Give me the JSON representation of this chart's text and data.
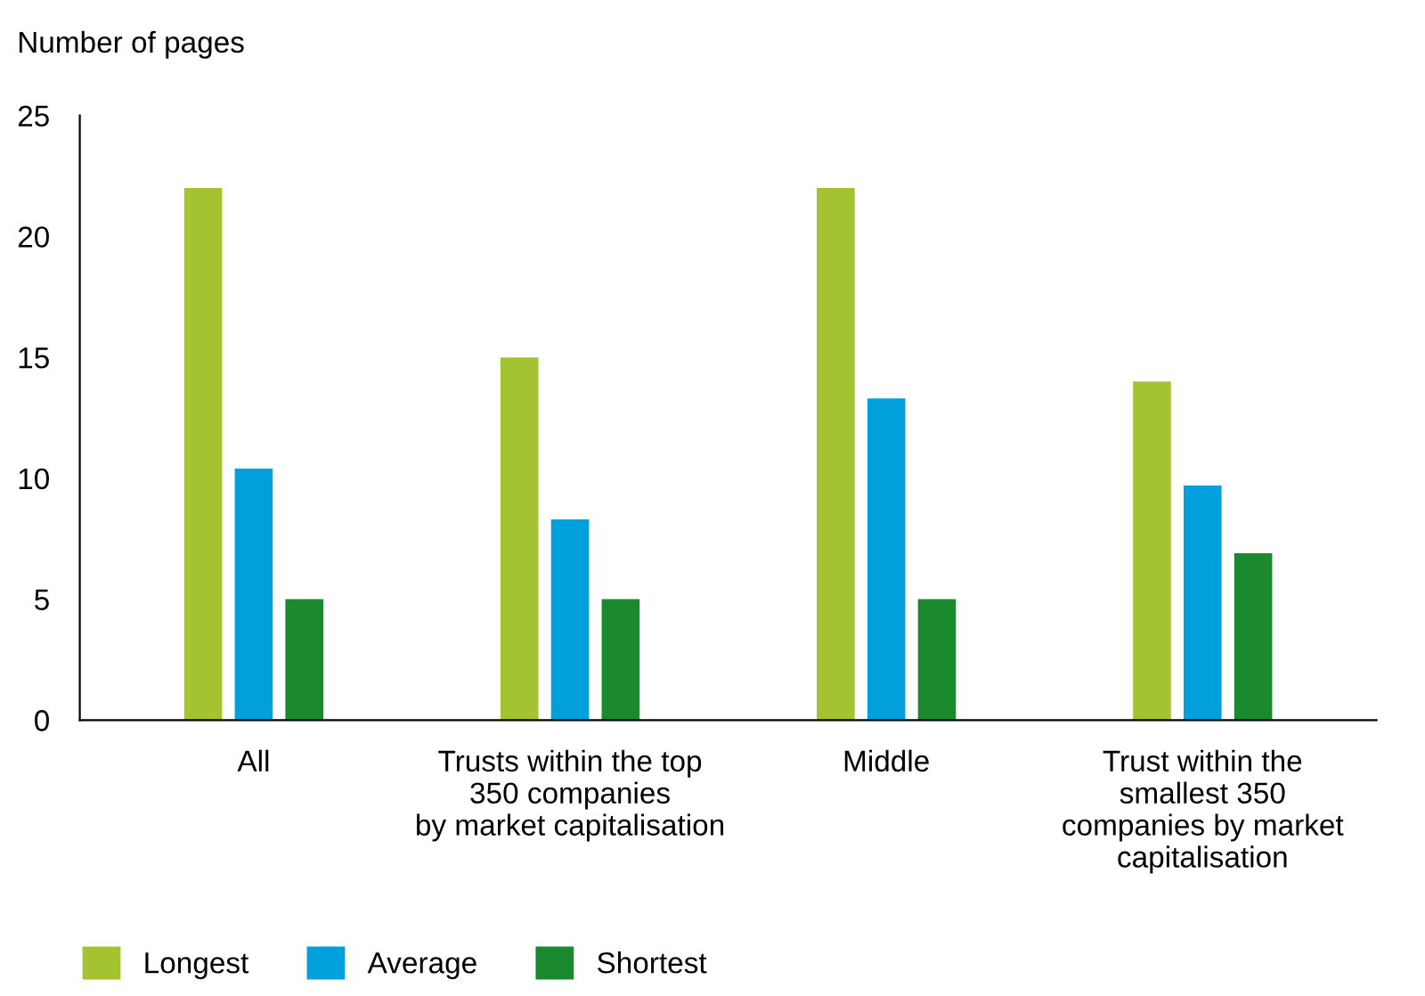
{
  "chart_data": {
    "type": "bar",
    "ylabel": "Number of pages",
    "categories": [
      "All",
      "Trusts within the top\n350 companies\nby market capitalisation",
      "Middle",
      "Trust within the\nsmallest 350\ncompanies by market\ncapitalisation"
    ],
    "series": [
      {
        "name": "Longest",
        "color": "#a4c330",
        "values": [
          22,
          15,
          22,
          14
        ]
      },
      {
        "name": "Average",
        "color": "#00a0dc",
        "values": [
          10.4,
          8.3,
          13.3,
          9.7
        ]
      },
      {
        "name": "Shortest",
        "color": "#1b8a2e",
        "values": [
          5,
          5,
          5,
          6.9
        ]
      }
    ],
    "ylim": [
      0,
      25
    ],
    "yticks": [
      0,
      5,
      10,
      15,
      20,
      25
    ],
    "grid": false,
    "legend": "bottom"
  }
}
